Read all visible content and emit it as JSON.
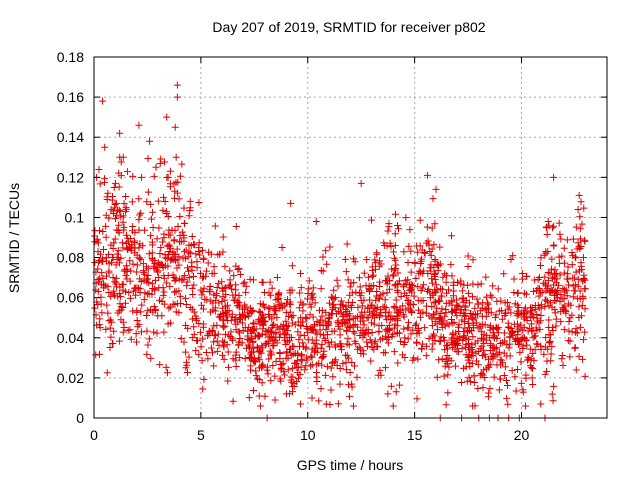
{
  "chart_data": {
    "type": "scatter",
    "title": "Day 207 of 2019, SRMTID for receiver p802",
    "xlabel": "GPS time / hours",
    "ylabel": "SRMTID / TECUs",
    "xlim": [
      0,
      24
    ],
    "ylim": [
      0,
      0.18
    ],
    "xticks": [
      0,
      5,
      10,
      15,
      20
    ],
    "xtick_labels": [
      "0",
      "5",
      "10",
      "15",
      "20"
    ],
    "yticks": [
      0,
      0.02,
      0.04,
      0.06,
      0.08,
      0.1,
      0.12,
      0.14,
      0.16,
      0.18
    ],
    "ytick_labels": [
      "0",
      "0.02",
      "0.04",
      "0.06",
      "0.08",
      "0.1",
      "0.12",
      "0.14",
      "0.16",
      "0.18"
    ],
    "grid": true,
    "marker": "+",
    "color": "#e00000",
    "trend": [
      [
        0.0,
        0.074
      ],
      [
        1.0,
        0.078
      ],
      [
        2.0,
        0.072
      ],
      [
        3.0,
        0.072
      ],
      [
        3.8,
        0.085
      ],
      [
        4.5,
        0.064
      ],
      [
        5.5,
        0.052
      ],
      [
        6.5,
        0.048
      ],
      [
        7.5,
        0.038
      ],
      [
        8.5,
        0.042
      ],
      [
        9.5,
        0.034
      ],
      [
        10.5,
        0.042
      ],
      [
        11.5,
        0.048
      ],
      [
        12.5,
        0.046
      ],
      [
        13.5,
        0.058
      ],
      [
        14.5,
        0.056
      ],
      [
        15.5,
        0.066
      ],
      [
        16.5,
        0.05
      ],
      [
        17.5,
        0.042
      ],
      [
        18.5,
        0.04
      ],
      [
        19.5,
        0.038
      ],
      [
        20.5,
        0.044
      ],
      [
        21.5,
        0.058
      ],
      [
        22.5,
        0.066
      ],
      [
        23.0,
        0.062
      ]
    ],
    "peaks": [
      [
        0.4,
        0.158
      ],
      [
        1.2,
        0.142
      ],
      [
        2.1,
        0.146
      ],
      [
        2.6,
        0.138
      ],
      [
        3.4,
        0.15
      ],
      [
        3.9,
        0.166
      ],
      [
        3.9,
        0.16
      ],
      [
        3.8,
        0.145
      ],
      [
        0.5,
        0.135
      ],
      [
        4.5,
        0.108
      ],
      [
        9.2,
        0.107
      ],
      [
        10.4,
        0.098
      ],
      [
        12.5,
        0.117
      ],
      [
        15.6,
        0.121
      ],
      [
        16.0,
        0.114
      ],
      [
        21.5,
        0.12
      ],
      [
        22.7,
        0.111
      ],
      [
        2.9,
        0.125
      ],
      [
        9.0,
        0.012
      ],
      [
        10.2,
        0.01
      ],
      [
        20.9,
        0.007
      ],
      [
        20.5,
        0.02
      ],
      [
        14.2,
        0.096
      ],
      [
        8.8,
        0.085
      ]
    ],
    "zeros": [
      8.1,
      16.2,
      17.2,
      18.0,
      18.5,
      18.9,
      19.4,
      19.9,
      21.1
    ],
    "point_count": 2200
  }
}
